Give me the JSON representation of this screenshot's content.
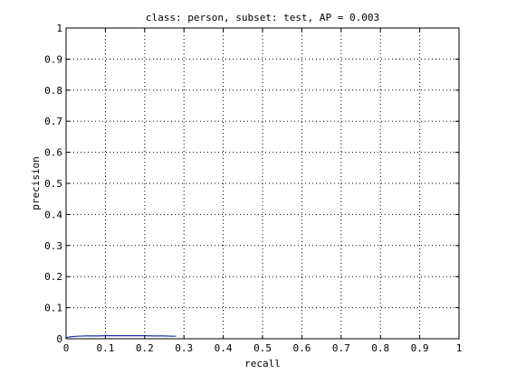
{
  "chart_data": {
    "type": "line",
    "title": "class: person, subset: test, AP = 0.003",
    "xlabel": "recall",
    "ylabel": "precision",
    "xlim": [
      0,
      1
    ],
    "ylim": [
      0,
      1
    ],
    "xticks": [
      "0",
      "0.1",
      "0.2",
      "0.3",
      "0.4",
      "0.5",
      "0.6",
      "0.7",
      "0.8",
      "0.9",
      "1"
    ],
    "yticks": [
      "0",
      "0.1",
      "0.2",
      "0.3",
      "0.4",
      "0.5",
      "0.6",
      "0.7",
      "0.8",
      "0.9",
      "1"
    ],
    "grid": true,
    "series": [
      {
        "color": "#1f2fa8",
        "x": [
          0.0,
          0.005,
          0.015,
          0.03,
          0.05,
          0.08,
          0.1,
          0.12,
          0.15,
          0.18,
          0.2,
          0.22,
          0.25,
          0.27,
          0.28
        ],
        "y": [
          0.003,
          0.005,
          0.007,
          0.008,
          0.009,
          0.009,
          0.01,
          0.01,
          0.01,
          0.01,
          0.01,
          0.009,
          0.009,
          0.008,
          0.008
        ]
      }
    ]
  }
}
